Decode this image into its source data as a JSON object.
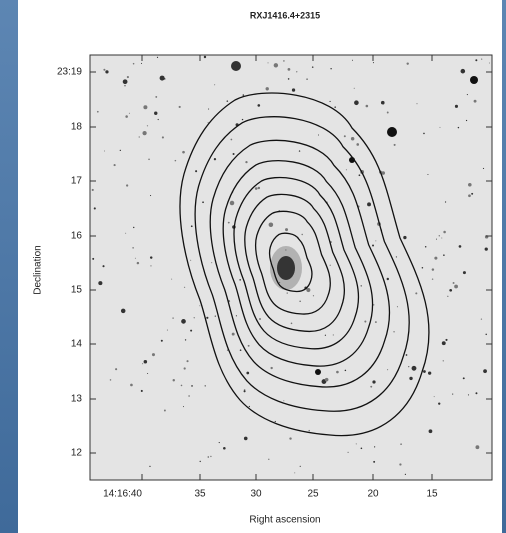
{
  "figure": {
    "title": "RXJ1416.4+2315",
    "x_label": "Right ascension",
    "y_label": "Declination",
    "x_ticks": [
      "14:16:40",
      "35",
      "30",
      "25",
      "20",
      "15"
    ],
    "y_ticks": [
      "23:19",
      "18",
      "17",
      "16",
      "15",
      "14",
      "13",
      "12"
    ]
  }
}
